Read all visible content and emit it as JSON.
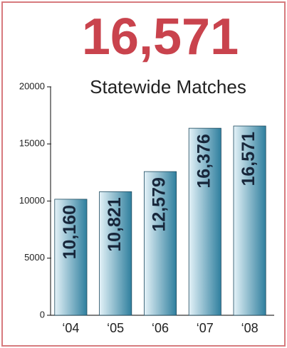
{
  "chart_data": {
    "type": "bar",
    "title": "16,571",
    "subtitle": "Statewide Matches",
    "categories": [
      "‘04",
      "‘05",
      "‘06",
      "‘07",
      "‘08"
    ],
    "values": [
      10160,
      10821,
      12579,
      16376,
      16571
    ],
    "value_labels": [
      "10,160",
      "10,821",
      "12,579",
      "16,376",
      "16,571"
    ],
    "color": "#2f7f9e",
    "ylim": [
      0,
      20000
    ],
    "yticks": [
      0,
      5000,
      10000,
      15000,
      20000
    ],
    "grid": false
  }
}
